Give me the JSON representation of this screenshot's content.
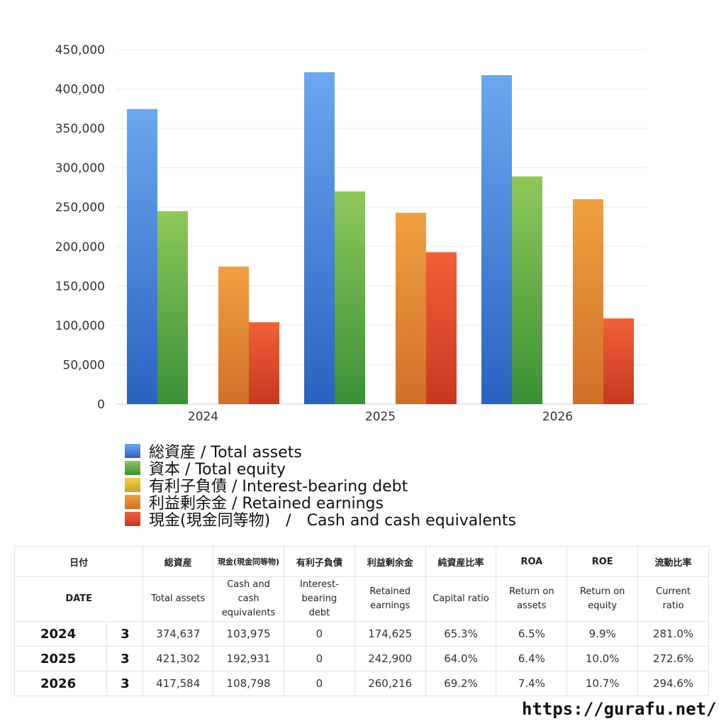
{
  "chart_data": {
    "type": "bar",
    "categories": [
      "2024",
      "2025",
      "2026"
    ],
    "ylim": [
      0,
      450000
    ],
    "yticks": [
      "0",
      "50,000",
      "100,000",
      "150,000",
      "200,000",
      "250,000",
      "300,000",
      "350,000",
      "400,000",
      "450,000"
    ],
    "series": [
      {
        "name": "総資産 / Total assets",
        "values": [
          374637,
          421302,
          417584
        ],
        "color_top": "#6aa8f0",
        "color_bottom": "#2a62c0"
      },
      {
        "name": "資本 / Total equity",
        "values": [
          245000,
          270000,
          289000
        ],
        "color_top": "#8fc85a",
        "color_bottom": "#3a9036"
      },
      {
        "name": "有利子負債 / Interest-bearing debt",
        "values": [
          0,
          0,
          0
        ],
        "color_top": "#f0d04a",
        "color_bottom": "#d0a020"
      },
      {
        "name": "利益剰余金 / Retained earnings",
        "values": [
          174625,
          242900,
          260216
        ],
        "color_top": "#f0a040",
        "color_bottom": "#d07028"
      },
      {
        "name": "現金(現金同等物)　/　Cash and cash equivalents",
        "values": [
          103975,
          192931,
          108798
        ],
        "color_top": "#f06038",
        "color_bottom": "#c83820"
      }
    ],
    "legend_position": "bottom",
    "grid": true
  },
  "table": {
    "header_jp": [
      "日付",
      "総資産",
      "現金(現金同等物)",
      "有利子負債",
      "利益剰余金",
      "純資産比率",
      "ROA",
      "ROE",
      "流動比率"
    ],
    "header_en": [
      "DATE",
      "Total assets",
      "Cash and cash equivalents",
      "Interest-bearing debt",
      "Retained earnings",
      "Capital ratio",
      "Return on assets",
      "Return on equity",
      "Current ratio"
    ],
    "rows": [
      {
        "year": "2024",
        "month": "3",
        "total_assets": "374,637",
        "cash": "103,975",
        "debt": "0",
        "retained": "174,625",
        "capital_ratio": "65.3%",
        "roa": "6.5%",
        "roe": "9.9%",
        "current_ratio": "281.0%"
      },
      {
        "year": "2025",
        "month": "3",
        "total_assets": "421,302",
        "cash": "192,931",
        "debt": "0",
        "retained": "242,900",
        "capital_ratio": "64.0%",
        "roa": "6.4%",
        "roe": "10.0%",
        "current_ratio": "272.6%"
      },
      {
        "year": "2026",
        "month": "3",
        "total_assets": "417,584",
        "cash": "108,798",
        "debt": "0",
        "retained": "260,216",
        "capital_ratio": "69.2%",
        "roa": "7.4%",
        "roe": "10.7%",
        "current_ratio": "294.6%"
      }
    ]
  },
  "site": "https://gurafu.net/"
}
